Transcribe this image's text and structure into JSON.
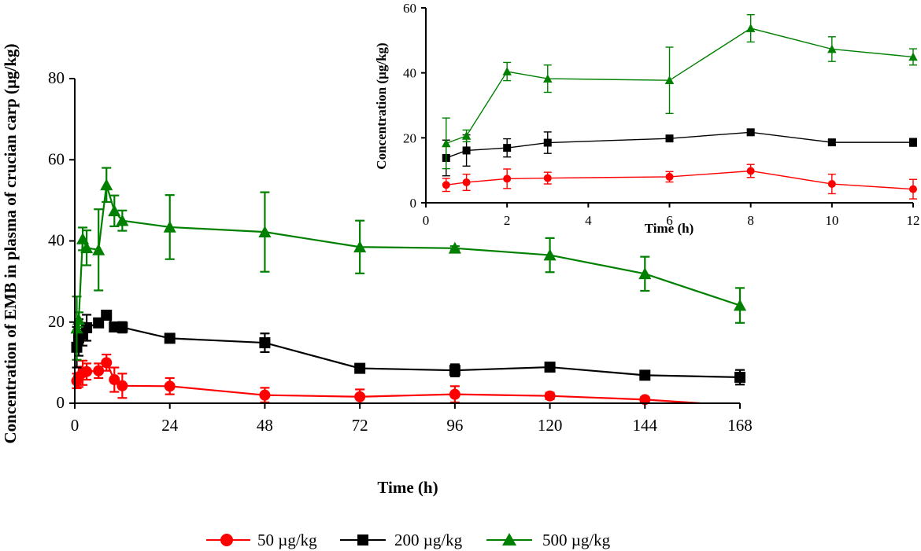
{
  "chart_data": [
    {
      "type": "line",
      "title": "",
      "xlabel": "Time (h)",
      "ylabel": "Concentration of EMB in plasma of crucian carp (µg/kg)",
      "xlim": [
        0,
        168
      ],
      "ylim": [
        0,
        80
      ],
      "xticks": [
        "0",
        "24",
        "48",
        "72",
        "96",
        "120",
        "144",
        "168"
      ],
      "yticks": [
        "0",
        "20",
        "40",
        "60",
        "80"
      ],
      "legend_position": "bottom",
      "series": [
        {
          "name": "50 µg/kg",
          "color": "#ff0000",
          "marker": "circle",
          "x": [
            0.5,
            1,
            2,
            3,
            6,
            8,
            10,
            12,
            24,
            48,
            72,
            96,
            120,
            144
          ],
          "y": [
            5.5,
            6.5,
            7.5,
            7.8,
            8.0,
            10.0,
            5.8,
            4.3,
            4.2,
            2.0,
            1.6,
            2.2,
            1.8,
            0.9
          ],
          "err": [
            1.8,
            2.5,
            3.0,
            2.0,
            1.8,
            2.0,
            3.0,
            3.0,
            2.0,
            1.8,
            1.8,
            2.0,
            0.8,
            0.6
          ],
          "trailing_x": 158,
          "trailing_y": 0
        },
        {
          "name": "200 µg/kg",
          "color": "#000000",
          "marker": "square",
          "x": [
            0.5,
            1,
            2,
            3,
            6,
            8,
            10,
            12,
            24,
            48,
            72,
            96,
            120,
            144,
            168
          ],
          "y": [
            13.8,
            16.2,
            17.0,
            18.6,
            19.8,
            21.7,
            18.8,
            18.7,
            16.0,
            14.9,
            8.6,
            8.1,
            8.9,
            6.9,
            6.4
          ],
          "err": [
            5.0,
            4.5,
            2.8,
            3.2,
            1.0,
            1.0,
            1.0,
            1.3,
            1.0,
            2.3,
            1.0,
            1.5,
            0.8,
            0.8,
            1.8
          ]
        },
        {
          "name": "500 µg/kg",
          "color": "#008000",
          "marker": "triangle",
          "x": [
            0.5,
            1,
            2,
            3,
            6,
            8,
            10,
            12,
            24,
            48,
            72,
            96,
            120,
            144,
            168
          ],
          "y": [
            18.5,
            20.6,
            40.5,
            38.3,
            37.8,
            53.8,
            47.4,
            45.0,
            43.4,
            42.2,
            38.5,
            38.2,
            36.5,
            31.9,
            24.1
          ],
          "err": [
            7.8,
            1.8,
            2.8,
            4.3,
            10.0,
            4.2,
            3.8,
            2.5,
            7.9,
            9.8,
            6.5,
            0.5,
            4.2,
            4.2,
            4.3
          ]
        }
      ]
    },
    {
      "type": "line",
      "title": "",
      "xlabel": "Time (h)",
      "ylabel": "Concentration (µg/kg)",
      "xlim": [
        0,
        12
      ],
      "ylim": [
        0,
        60
      ],
      "xticks": [
        "0",
        "2",
        "4",
        "6",
        "8",
        "10",
        "12"
      ],
      "yticks": [
        "0",
        "20",
        "40",
        "60"
      ],
      "series": [
        {
          "name": "50 µg/kg",
          "color": "#ff0000",
          "marker": "circle",
          "x": [
            0.5,
            1,
            2,
            3,
            6,
            8,
            10,
            12
          ],
          "y": [
            5.5,
            6.3,
            7.4,
            7.6,
            8.0,
            9.8,
            5.8,
            4.2
          ],
          "err": [
            2.0,
            2.5,
            3.0,
            1.8,
            1.6,
            2.0,
            3.0,
            3.0
          ]
        },
        {
          "name": "200 µg/kg",
          "color": "#000000",
          "marker": "square",
          "x": [
            0.5,
            1,
            2,
            3,
            6,
            8,
            10,
            12
          ],
          "y": [
            13.8,
            16.1,
            16.9,
            18.5,
            19.8,
            21.7,
            18.6,
            18.6
          ],
          "err": [
            5.5,
            4.8,
            2.8,
            3.3,
            0.8,
            0.8,
            0.8,
            1.2
          ]
        },
        {
          "name": "500 µg/kg",
          "color": "#008000",
          "marker": "triangle",
          "x": [
            0.5,
            1,
            2,
            3,
            6,
            8,
            10,
            12
          ],
          "y": [
            18.3,
            20.6,
            40.4,
            38.2,
            37.7,
            53.7,
            47.3,
            44.9
          ],
          "err": [
            7.8,
            1.8,
            2.8,
            4.2,
            10.2,
            4.2,
            3.8,
            2.5
          ]
        }
      ]
    }
  ]
}
